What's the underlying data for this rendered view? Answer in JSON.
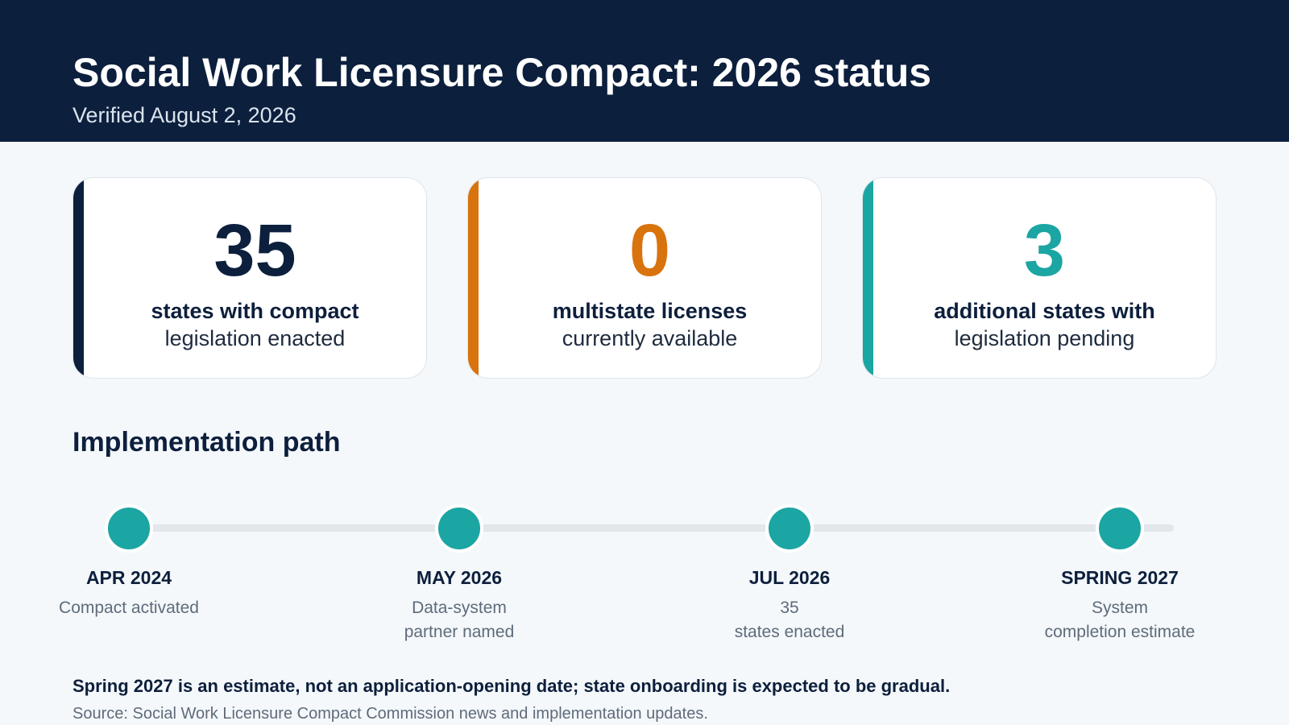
{
  "header": {
    "title": "Social Work Licensure Compact: 2026 status",
    "verified": "Verified August 2, 2026"
  },
  "stats": [
    {
      "value": "35",
      "label_strong": "states with compact",
      "label_rest": "legislation enacted",
      "accent_color": "#0c1f3d"
    },
    {
      "value": "0",
      "label_strong": "multistate licenses",
      "label_rest": "currently available",
      "accent_color": "#d9730d"
    },
    {
      "value": "3",
      "label_strong": "additional states with",
      "label_rest": "legislation pending",
      "accent_color": "#1ba5a3"
    }
  ],
  "timeline": {
    "title": "Implementation path",
    "dot_color": "#1ba5a3",
    "milestones": [
      {
        "date": "APR 2024",
        "line1": "Compact activated",
        "line2": ""
      },
      {
        "date": "MAY 2026",
        "line1": "Data-system",
        "line2": "partner named"
      },
      {
        "date": "JUL 2026",
        "line1": "35",
        "line2": "states enacted"
      },
      {
        "date": "SPRING 2027",
        "line1": "System",
        "line2": "completion estimate"
      }
    ]
  },
  "footer": {
    "note": "Spring 2027 is an estimate, not an application-opening date; state onboarding is expected to be gradual.",
    "source": "Source: Social Work Licensure Compact Commission news and implementation updates."
  }
}
